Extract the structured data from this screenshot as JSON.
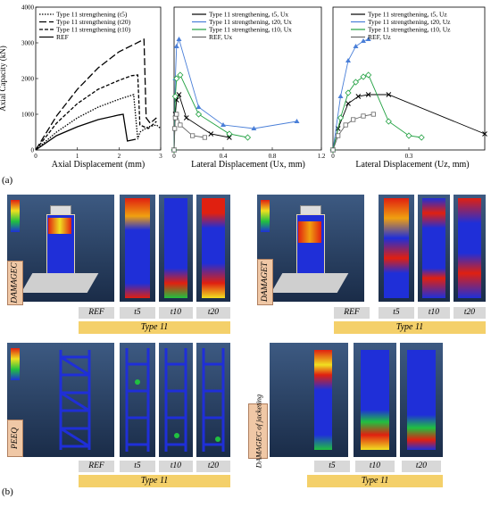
{
  "part_labels": {
    "a": "(a)",
    "b": "(b)"
  },
  "chart_data": [
    {
      "type": "line",
      "xlabel": "Axial Displacement (mm)",
      "ylabel": "Axial Capacity (kN)",
      "xlim": [
        0,
        3
      ],
      "ylim": [
        0,
        4000
      ],
      "xticks": [
        "0",
        "1",
        "2",
        "3"
      ],
      "yticks": [
        "0",
        "1000",
        "2000",
        "3000",
        "4000"
      ],
      "legend": "top-left",
      "series": [
        {
          "name": "Type 11 strengthening (t5)",
          "x": [
            0,
            0.5,
            1.0,
            1.5,
            2.0,
            2.35,
            2.45,
            2.5,
            2.7,
            2.9,
            3.0
          ],
          "y": [
            0,
            500,
            900,
            1200,
            1420,
            1550,
            300,
            500,
            650,
            700,
            600
          ]
        },
        {
          "name": "Type 11 strengthening (t20)",
          "x": [
            0,
            0.5,
            1.0,
            1.5,
            2.0,
            2.4,
            2.6,
            2.65,
            2.75,
            2.9
          ],
          "y": [
            0,
            950,
            1700,
            2300,
            2750,
            2980,
            3100,
            900,
            750,
            900
          ]
        },
        {
          "name": "Type 11 strengthening (t10)",
          "x": [
            0,
            0.5,
            1.0,
            1.5,
            2.0,
            2.3,
            2.45,
            2.5,
            2.7,
            2.9
          ],
          "y": [
            0,
            750,
            1300,
            1700,
            1950,
            2080,
            2100,
            700,
            600,
            800
          ]
        },
        {
          "name": "REF",
          "x": [
            0,
            0.5,
            1.0,
            1.5,
            2.0,
            2.1,
            2.2,
            2.4
          ],
          "y": [
            0,
            400,
            650,
            850,
            980,
            1000,
            250,
            300
          ]
        }
      ]
    },
    {
      "type": "line",
      "xlabel": "Lateral Displacement (Ux, mm)",
      "xlim": [
        0,
        1.2
      ],
      "ylim": [
        0,
        4000
      ],
      "xticks": [
        "0",
        "0.4",
        "0.8",
        "1.2"
      ],
      "legend": "top-right",
      "series": [
        {
          "name": "Type 11 strengthening, t5, Ux",
          "x": [
            0,
            0.01,
            0.02,
            0.04,
            0.1,
            0.3,
            0.45
          ],
          "y": [
            0,
            1000,
            1400,
            1550,
            900,
            450,
            350
          ]
        },
        {
          "name": "Type 11 strengthening, t20, Ux",
          "x": [
            0,
            0.01,
            0.02,
            0.04,
            0.2,
            0.4,
            0.65,
            1.0
          ],
          "y": [
            0,
            2000,
            2900,
            3100,
            1200,
            700,
            600,
            800
          ]
        },
        {
          "name": "Type 11 strengthening, t10, Ux",
          "x": [
            0,
            0.01,
            0.02,
            0.05,
            0.2,
            0.45,
            0.6
          ],
          "y": [
            0,
            1500,
            2000,
            2100,
            1000,
            450,
            350
          ]
        },
        {
          "name": "REF, Ux",
          "x": [
            0,
            0.005,
            0.01,
            0.02,
            0.05,
            0.15,
            0.25
          ],
          "y": [
            0,
            600,
            900,
            1000,
            700,
            400,
            350
          ]
        }
      ]
    },
    {
      "type": "line",
      "xlabel": "Lateral Displacement (Uz, mm)",
      "xlim": [
        0,
        0.6
      ],
      "ylim": [
        0,
        4000
      ],
      "xticks": [
        "0",
        "0.3"
      ],
      "legend": "top-right",
      "series": [
        {
          "name": "Type 11 strengthening, t5, Uz",
          "x": [
            0,
            0.02,
            0.06,
            0.1,
            0.14,
            0.22,
            0.6
          ],
          "y": [
            0,
            600,
            1300,
            1500,
            1550,
            1550,
            450
          ]
        },
        {
          "name": "Type 11 strengthening, t20, Uz",
          "x": [
            0,
            0.03,
            0.06,
            0.09,
            0.12,
            0.14
          ],
          "y": [
            0,
            1500,
            2500,
            2900,
            3050,
            3100
          ]
        },
        {
          "name": "Type 11 strengthening, t10, Uz",
          "x": [
            0,
            0.03,
            0.06,
            0.09,
            0.12,
            0.14,
            0.22,
            0.3,
            0.35
          ],
          "y": [
            0,
            900,
            1600,
            1900,
            2050,
            2100,
            800,
            400,
            350
          ]
        },
        {
          "name": "REF, Uz",
          "x": [
            0,
            0.02,
            0.05,
            0.08,
            0.12,
            0.16
          ],
          "y": [
            0,
            400,
            700,
            850,
            950,
            1000
          ]
        }
      ]
    }
  ],
  "panels": {
    "damagec": {
      "side": "DAMAGEC",
      "ref": "REF",
      "tags": [
        "t5",
        "t10",
        "t20"
      ],
      "type": "Type 11"
    },
    "damaget": {
      "side": "DAMAGET",
      "ref": "REF",
      "tags": [
        "t5",
        "t10",
        "t20"
      ],
      "type": "Type 11"
    },
    "peeq": {
      "side": "PEEQ",
      "ref": "REF",
      "tags": [
        "t5",
        "t10",
        "t20"
      ],
      "type": "Type 11"
    },
    "jacket": {
      "side": "DAMAGEC of jacketing",
      "tags": [
        "t5",
        "t10",
        "t20"
      ],
      "type": "Type 11"
    }
  },
  "colors": {
    "blue": "#1f2fd8",
    "red": "#e02010",
    "green": "#20c040",
    "yellow": "#f4d06a",
    "tag": "#d8d8d8",
    "side": "#f0c8a6"
  }
}
